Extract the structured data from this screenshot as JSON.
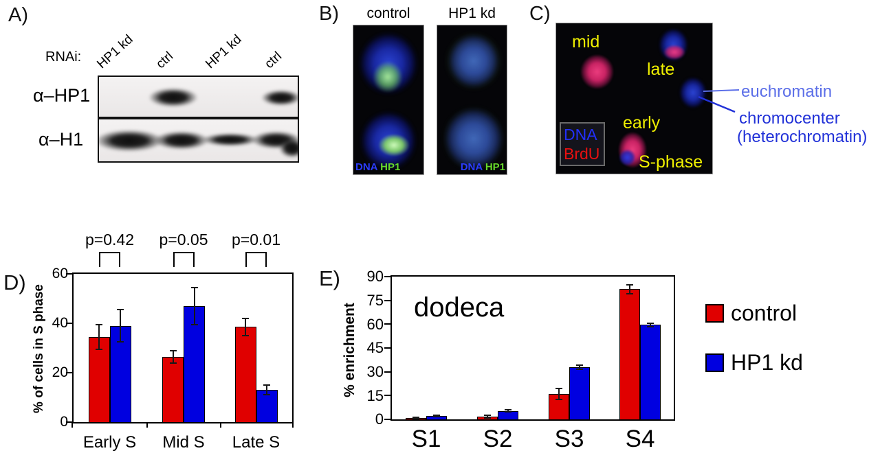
{
  "panels": {
    "a": {
      "label": "A)",
      "rnai_label": "RNAi:",
      "lanes": [
        "HP1 kd",
        "ctrl",
        "HP1 kd",
        "ctrl"
      ],
      "antibodies": [
        "α–HP1",
        "α–H1"
      ]
    },
    "b": {
      "label": "B)",
      "columns": [
        "control",
        "HP1 kd"
      ],
      "stains": {
        "dna": "DNA",
        "hp1": "HP1"
      },
      "colors": {
        "dna_text": "#2b3cff",
        "hp1_text": "#66d82a"
      }
    },
    "c": {
      "label": "C)",
      "phase_labels": {
        "mid": "mid",
        "late": "late",
        "early": "early",
        "sphase": "S-phase"
      },
      "stain_legend": {
        "dna": "DNA",
        "brdu": "BrdU"
      },
      "annotations": {
        "euchromatin": "euchromatin",
        "chromocenter": "chromocenter",
        "heterochromatin": "(heterochromatin)"
      },
      "colors": {
        "label_yellow": "#f0f000",
        "euchromatin_blue": "#5c6fe8",
        "heterochromatin_blue": "#2232d8",
        "dna_text": "#2230ff",
        "brdu_text": "#e81010"
      }
    },
    "d": {
      "label": "D)"
    },
    "e": {
      "label": "E)"
    }
  },
  "chart_data": [
    {
      "panel": "D",
      "type": "bar",
      "categories": [
        "Early S",
        "Mid S",
        "Late S"
      ],
      "series": [
        {
          "name": "control",
          "color": "#e00000",
          "values": [
            34.5,
            26.5,
            38.5
          ],
          "errors": [
            5,
            2.5,
            3.5
          ]
        },
        {
          "name": "HP1 kd",
          "color": "#0000e0",
          "values": [
            39,
            47,
            13
          ],
          "errors": [
            6.5,
            7.5,
            2
          ]
        }
      ],
      "ylabel": "% of cells in S phase",
      "xlabel": "",
      "ylim": [
        0,
        60
      ],
      "yticks": [
        0,
        20,
        40,
        60
      ],
      "grid": false,
      "pvalues": [
        "p=0.42",
        "p=0.05",
        "p=0.01"
      ]
    },
    {
      "panel": "E",
      "type": "bar",
      "title": "dodeca",
      "categories": [
        "S1",
        "S2",
        "S3",
        "S4"
      ],
      "series": [
        {
          "name": "control",
          "color": "#e00000",
          "values": [
            1,
            1.6,
            16,
            82
          ],
          "errors": [
            0.4,
            0.8,
            3.5,
            3
          ]
        },
        {
          "name": "HP1 kd",
          "color": "#0000e0",
          "values": [
            2.2,
            5.4,
            33,
            59.5
          ],
          "errors": [
            0.5,
            0.5,
            1.2,
            1
          ]
        }
      ],
      "ylabel": "% enrichment",
      "xlabel": "",
      "ylim": [
        0,
        90
      ],
      "yticks": [
        0,
        15,
        30,
        45,
        60,
        75,
        90
      ],
      "grid": false,
      "legend_position": "right"
    }
  ]
}
